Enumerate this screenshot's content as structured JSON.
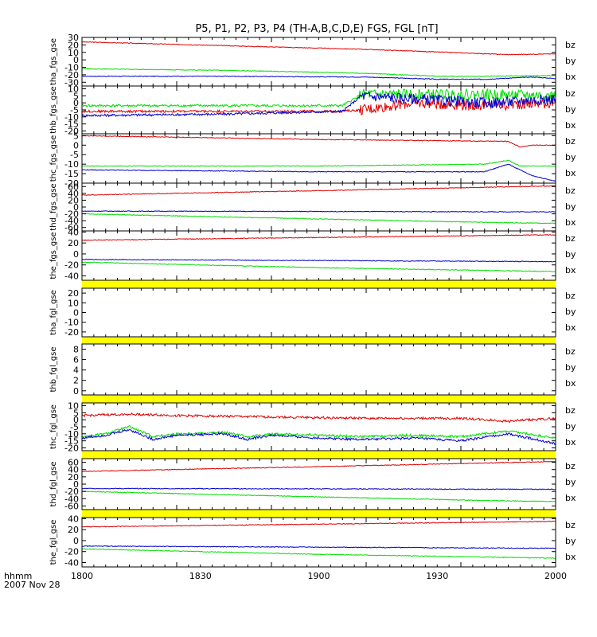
{
  "title": "P5, P1, P2, P3, P4 (TH-A,B,C,D,E) FGS, FGL [nT]",
  "footer": {
    "axis_unit": "hhmm",
    "date": "2007 Nov 28"
  },
  "colors": {
    "bz": "#dd0000",
    "by": "#00dd00",
    "bx": "#0000cc",
    "bar": "#ffff00"
  },
  "chart_data": {
    "type": "line",
    "x_axis": {
      "range": [
        "1800",
        "2000"
      ],
      "ticks": [
        "1800",
        "1830",
        "1900",
        "1930",
        "2000"
      ]
    },
    "panels": [
      {
        "ylabel": "tha_fgs_gse",
        "ylim": [
          -35,
          30
        ],
        "yticks": [
          "30",
          "20",
          "10",
          "0",
          "-10",
          "-20",
          "-30"
        ],
        "legend": [
          "bz",
          "by",
          "bx"
        ],
        "series": [
          {
            "name": "bz",
            "x": [
              0,
              60,
              120,
              180,
              200
            ],
            "y": [
              24,
              19,
              14,
              7,
              8
            ]
          },
          {
            "name": "by",
            "x": [
              0,
              60,
              120,
              150,
              170,
              200
            ],
            "y": [
              -12,
              -14,
              -18,
              -22,
              -22,
              -21
            ]
          },
          {
            "name": "bx",
            "x": [
              0,
              60,
              120,
              150,
              170,
              190,
              200
            ],
            "y": [
              -22,
              -22,
              -23,
              -26,
              -26,
              -23,
              -25
            ]
          }
        ]
      },
      {
        "ylabel": "thb_fgs_gse",
        "ylim": [
          -22,
          12
        ],
        "yticks": [
          "10",
          "5",
          "0",
          "-5",
          "-10",
          "-15",
          "-20"
        ],
        "legend": [
          "bz",
          "by",
          "bx"
        ],
        "series": [
          {
            "name": "bz",
            "x": [
              0,
              60,
              110,
              118,
              140,
              170,
              200
            ],
            "y": [
              -6,
              -6,
              -6,
              -5,
              0,
              -2,
              0
            ]
          },
          {
            "name": "by",
            "x": [
              0,
              60,
              110,
              118,
              140,
              170,
              200
            ],
            "y": [
              -2,
              -2,
              -2,
              6,
              6,
              6,
              5
            ]
          },
          {
            "name": "bx",
            "x": [
              0,
              60,
              110,
              118,
              140,
              170,
              200
            ],
            "y": [
              -9,
              -8,
              -6,
              5,
              3,
              0,
              3
            ]
          }
        ]
      },
      {
        "ylabel": "thc_fgs_gse",
        "ylim": [
          -20,
          6
        ],
        "yticks": [
          "5",
          "0",
          "-5",
          "-10",
          "-15",
          "-20"
        ],
        "legend": [
          "bz",
          "by",
          "bx"
        ],
        "series": [
          {
            "name": "bz",
            "x": [
              0,
              100,
              180,
              185,
              190,
              200
            ],
            "y": [
              5,
              3,
              2,
              -1,
              0,
              0
            ]
          },
          {
            "name": "by",
            "x": [
              0,
              100,
              170,
              180,
              185,
              200
            ],
            "y": [
              -11,
              -11,
              -10,
              -8,
              -11,
              -11
            ]
          },
          {
            "name": "bx",
            "x": [
              0,
              100,
              170,
              180,
              190,
              200
            ],
            "y": [
              -13,
              -14,
              -14,
              -10,
              -16,
              -19
            ]
          }
        ]
      },
      {
        "ylabel": "thd_fgs_gse",
        "ylim": [
          -70,
          70
        ],
        "yticks": [
          "60",
          "40",
          "20",
          "0",
          "-20",
          "-40",
          "-60"
        ],
        "legend": [
          "bz",
          "by",
          "bx"
        ],
        "series": [
          {
            "name": "bz",
            "x": [
              0,
              100,
              200
            ],
            "y": [
              35,
              48,
              62
            ]
          },
          {
            "name": "by",
            "x": [
              0,
              100,
              170,
              200
            ],
            "y": [
              -20,
              -35,
              -45,
              -48
            ]
          },
          {
            "name": "bx",
            "x": [
              0,
              100,
              170,
              200
            ],
            "y": [
              -12,
              -13,
              -14,
              -14
            ]
          }
        ]
      },
      {
        "ylabel": "the_fgs_gse",
        "ylim": [
          -48,
          42
        ],
        "yticks": [
          "40",
          "20",
          "0",
          "-20",
          "-40"
        ],
        "legend": [
          "bz",
          "by",
          "bx"
        ],
        "series": [
          {
            "name": "bz",
            "x": [
              0,
              100,
              200
            ],
            "y": [
              25,
              30,
              35
            ]
          },
          {
            "name": "by",
            "x": [
              0,
              100,
              170,
              200
            ],
            "y": [
              -15,
              -25,
              -30,
              -32
            ]
          },
          {
            "name": "bx",
            "x": [
              0,
              100,
              200
            ],
            "y": [
              -10,
              -12,
              -14
            ]
          }
        ]
      },
      {
        "ylabel": "tha_fgl_gse",
        "ylim": [
          -25,
          25
        ],
        "yticks": [
          "20",
          "10",
          "0",
          "-10",
          "-20"
        ],
        "legend": [
          "bz",
          "by",
          "bx"
        ],
        "series": []
      },
      {
        "ylabel": "thb_fgl_gse",
        "ylim": [
          -0.8,
          9
        ],
        "yticks": [
          "8",
          "6",
          "4",
          "2",
          "0"
        ],
        "legend": [
          "bz",
          "by",
          "bx"
        ],
        "series": []
      },
      {
        "ylabel": "thc_fgl_gse",
        "ylim": [
          -22,
          12
        ],
        "yticks": [
          "10",
          "5",
          "0",
          "-5",
          "-10",
          "-15",
          "-20"
        ],
        "legend": [
          "bz",
          "by",
          "bx"
        ],
        "series": [
          {
            "name": "bz",
            "x": [
              0,
              20,
              40,
              80,
              120,
              160,
              180,
              200
            ],
            "y": [
              3,
              4,
              3,
              2,
              1,
              1,
              -1,
              1
            ]
          },
          {
            "name": "by",
            "x": [
              0,
              10,
              20,
              30,
              40,
              60,
              70,
              80,
              100,
              120,
              140,
              160,
              180,
              200
            ],
            "y": [
              -12,
              -10,
              -5,
              -12,
              -10,
              -9,
              -12,
              -10,
              -11,
              -12,
              -11,
              -12,
              -8,
              -13
            ]
          },
          {
            "name": "bx",
            "x": [
              0,
              10,
              20,
              30,
              40,
              60,
              70,
              80,
              100,
              120,
              140,
              160,
              180,
              200
            ],
            "y": [
              -13,
              -11,
              -7,
              -14,
              -11,
              -10,
              -14,
              -11,
              -13,
              -14,
              -13,
              -15,
              -10,
              -17
            ]
          }
        ]
      },
      {
        "ylabel": "thd_fgl_gse",
        "ylim": [
          -70,
          70
        ],
        "yticks": [
          "60",
          "40",
          "20",
          "0",
          "-20",
          "-40",
          "-60"
        ],
        "legend": [
          "bz",
          "by",
          "bx"
        ],
        "series": [
          {
            "name": "bz",
            "x": [
              0,
              100,
              200
            ],
            "y": [
              35,
              48,
              62
            ]
          },
          {
            "name": "by",
            "x": [
              0,
              100,
              170,
              200
            ],
            "y": [
              -20,
              -35,
              -45,
              -48
            ]
          },
          {
            "name": "bx",
            "x": [
              0,
              100,
              170,
              200
            ],
            "y": [
              -12,
              -13,
              -14,
              -14
            ]
          }
        ]
      },
      {
        "ylabel": "the_fgl_gse",
        "ylim": [
          -48,
          42
        ],
        "yticks": [
          "40",
          "20",
          "0",
          "-20",
          "-40"
        ],
        "legend": [
          "bz",
          "by",
          "bx"
        ],
        "series": [
          {
            "name": "bz",
            "x": [
              0,
              100,
              200
            ],
            "y": [
              25,
              30,
              35
            ]
          },
          {
            "name": "by",
            "x": [
              0,
              100,
              170,
              200
            ],
            "y": [
              -15,
              -25,
              -30,
              -32
            ]
          },
          {
            "name": "bx",
            "x": [
              0,
              100,
              200
            ],
            "y": [
              -10,
              -12,
              -14
            ]
          }
        ]
      }
    ]
  }
}
